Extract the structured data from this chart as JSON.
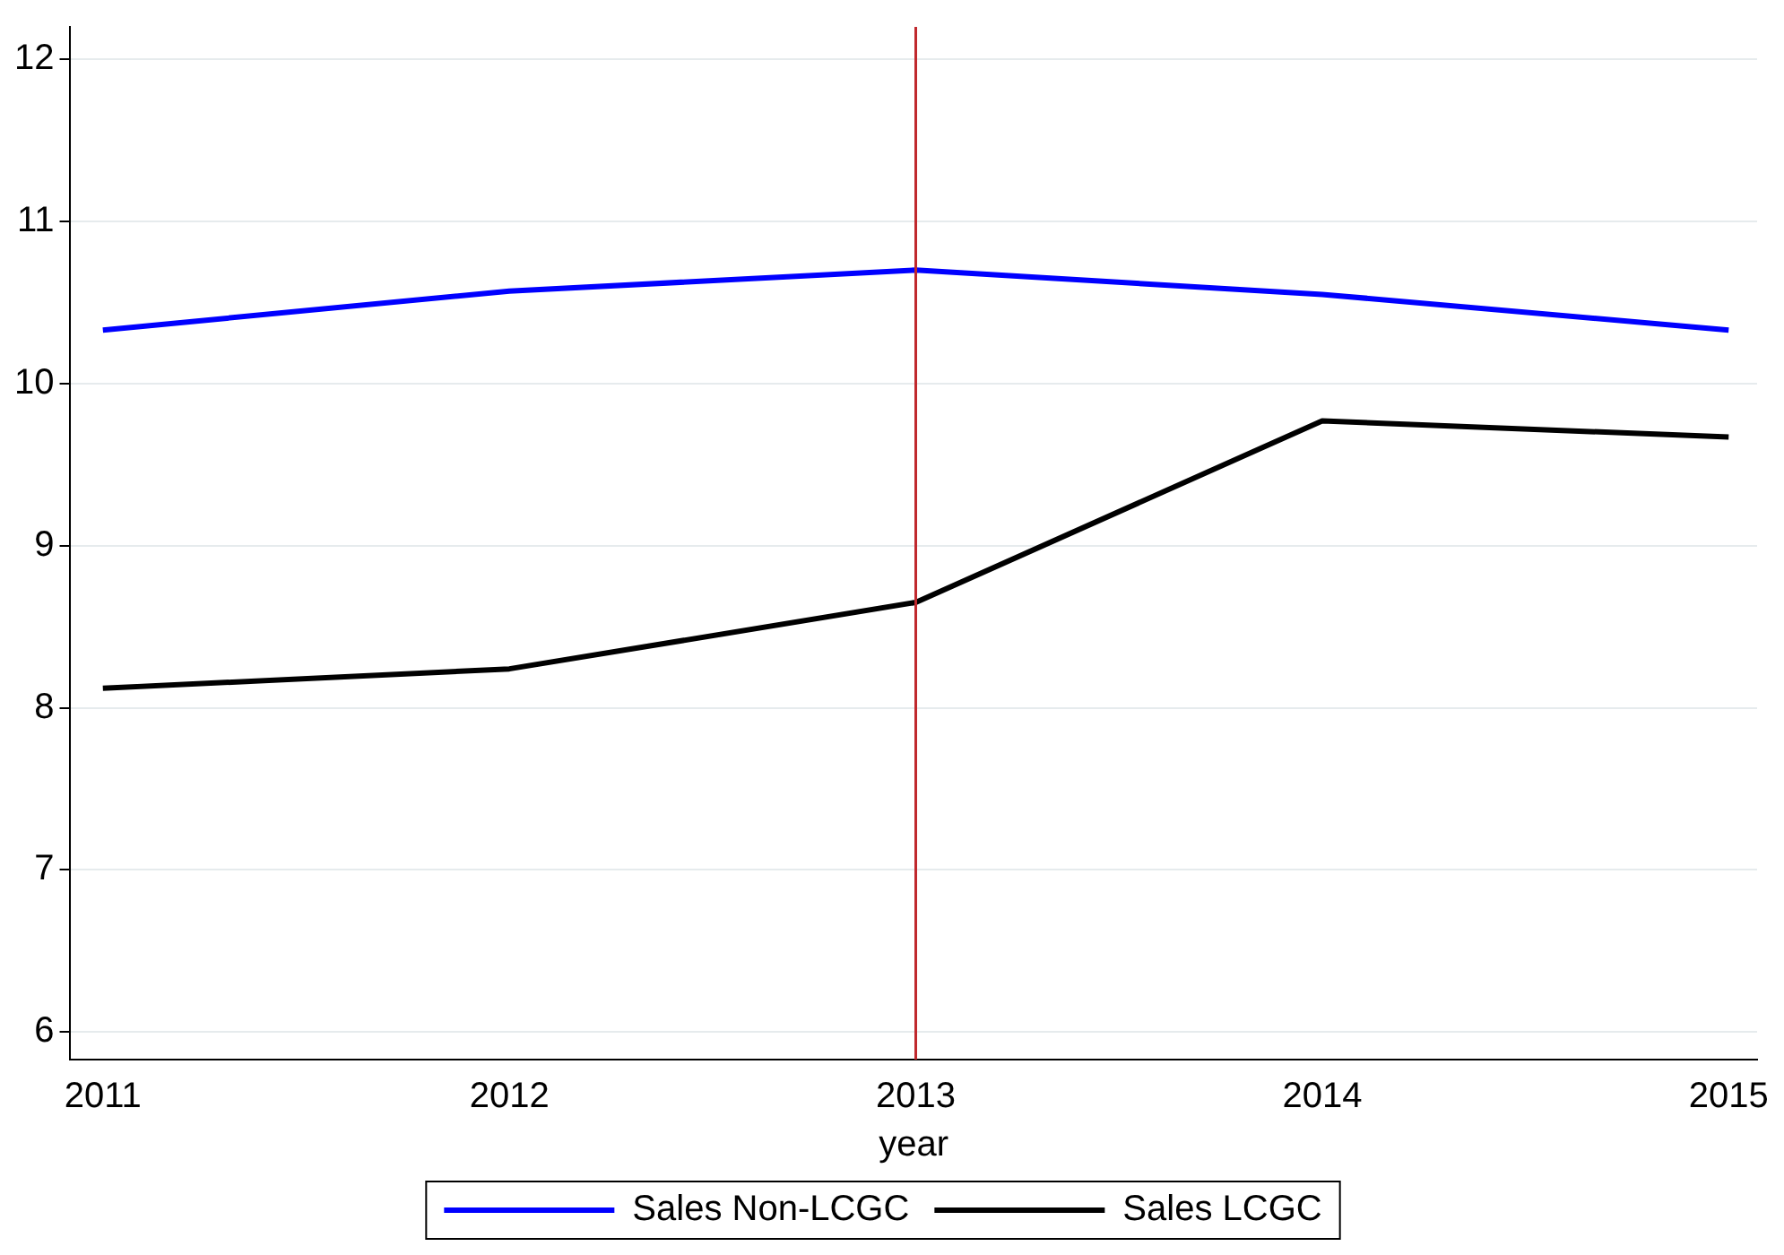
{
  "chart_data": {
    "type": "line",
    "xlabel": "year",
    "x": [
      2011,
      2012,
      2013,
      2014,
      2015
    ],
    "series": [
      {
        "name": "Sales Non-LCGC",
        "color": "#0000ff",
        "values": [
          10.33,
          10.57,
          10.7,
          10.55,
          10.33
        ]
      },
      {
        "name": "Sales LCGC",
        "color": "#000000",
        "values": [
          8.12,
          8.24,
          8.65,
          9.77,
          9.67
        ]
      }
    ],
    "xlim": [
      2010.92,
      2015.07
    ],
    "xticks": [
      2011,
      2012,
      2013,
      2014,
      2015
    ],
    "ylim": [
      5.83,
      12.2
    ],
    "yticks": [
      6,
      7,
      8,
      9,
      10,
      11,
      12
    ],
    "ref_lines": [
      {
        "axis": "x",
        "value": 2013,
        "color": "#c0282d"
      }
    ],
    "grid": "y",
    "legend": "bottom",
    "marker": "none",
    "line_style": "solid"
  }
}
